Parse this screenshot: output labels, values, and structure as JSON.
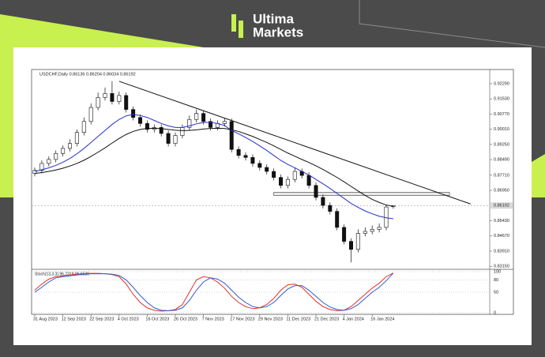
{
  "brand": {
    "line1": "Ultima",
    "line2": "Markets"
  },
  "chart_data": {
    "type": "candlestick",
    "title": "USDCHF,Daily 0.86136 0.86204 0.86034 0.86192",
    "categories": [
      "31 Aug 2023",
      null,
      null,
      null,
      "12 Sep 2023",
      null,
      null,
      null,
      "22 Sep 2023",
      null,
      null,
      null,
      "4 Oct 2023",
      null,
      null,
      null,
      "16 Oct 2023",
      null,
      null,
      null,
      "26 Oct 2023",
      null,
      null,
      null,
      "7 Nov 2023",
      null,
      null,
      null,
      "17 Nov 2023",
      null,
      null,
      null,
      "29 Nov 2023",
      null,
      null,
      null,
      "11 Dec 2023",
      null,
      null,
      null,
      "21 Dec 2023",
      null,
      null,
      null,
      "4 Jan 2024",
      null,
      null,
      null,
      "16 Jan 2024",
      null,
      null,
      null
    ],
    "open": [
      0.878,
      0.8795,
      0.883,
      0.885,
      0.888,
      0.8905,
      0.893,
      0.8985,
      0.904,
      0.911,
      0.916,
      0.918,
      0.914,
      0.917,
      0.91,
      0.906,
      0.903,
      0.9,
      0.901,
      0.898,
      0.893,
      0.897,
      0.901,
      0.905,
      0.908,
      0.904,
      0.901,
      0.903,
      0.904,
      0.89,
      0.887,
      0.886,
      0.883,
      0.881,
      0.879,
      0.876,
      0.872,
      0.875,
      0.879,
      0.877,
      0.872,
      0.866,
      0.862,
      0.859,
      0.851,
      0.844,
      0.84,
      0.848,
      0.849,
      0.85,
      0.851,
      0.86136
    ],
    "high": [
      0.881,
      0.8845,
      0.8865,
      0.8895,
      0.892,
      0.895,
      0.9,
      0.906,
      0.913,
      0.9185,
      0.921,
      0.9241,
      0.919,
      0.9185,
      0.9115,
      0.9075,
      0.9045,
      0.9025,
      0.9025,
      0.8995,
      0.8985,
      0.9025,
      0.907,
      0.91,
      0.9095,
      0.9055,
      0.9045,
      0.9055,
      0.9055,
      0.8915,
      0.8885,
      0.8875,
      0.8845,
      0.8825,
      0.8805,
      0.8775,
      0.8765,
      0.881,
      0.8805,
      0.8785,
      0.8735,
      0.8675,
      0.8635,
      0.8605,
      0.8525,
      0.8455,
      0.85,
      0.851,
      0.852,
      0.853,
      0.862,
      0.86204
    ],
    "low": [
      0.8765,
      0.878,
      0.8815,
      0.8835,
      0.8865,
      0.889,
      0.8915,
      0.897,
      0.9025,
      0.9095,
      0.9145,
      0.9125,
      0.9125,
      0.9085,
      0.9045,
      0.9015,
      0.8985,
      0.8985,
      0.8965,
      0.8915,
      0.8915,
      0.8955,
      0.8995,
      0.9035,
      0.9025,
      0.8995,
      0.8995,
      0.9015,
      0.8885,
      0.8855,
      0.8845,
      0.8815,
      0.8795,
      0.8775,
      0.8745,
      0.8705,
      0.8705,
      0.8735,
      0.8755,
      0.8705,
      0.8645,
      0.8605,
      0.8575,
      0.8495,
      0.8425,
      0.8335,
      0.8385,
      0.8465,
      0.8475,
      0.8485,
      0.8495,
      0.86034
    ],
    "close": [
      0.8795,
      0.883,
      0.885,
      0.888,
      0.8905,
      0.893,
      0.8985,
      0.904,
      0.911,
      0.916,
      0.918,
      0.914,
      0.917,
      0.91,
      0.906,
      0.903,
      0.9,
      0.901,
      0.898,
      0.893,
      0.897,
      0.901,
      0.905,
      0.908,
      0.904,
      0.901,
      0.903,
      0.904,
      0.89,
      0.887,
      0.886,
      0.883,
      0.881,
      0.879,
      0.876,
      0.872,
      0.875,
      0.879,
      0.877,
      0.872,
      0.866,
      0.862,
      0.859,
      0.851,
      0.844,
      0.84,
      0.848,
      0.849,
      0.85,
      0.851,
      0.8612,
      0.86192
    ],
    "up_color": "#ffffff",
    "down_color": "#111111",
    "moving_averages": [
      {
        "color": "#2330c8",
        "values": [
          0.879,
          0.8798,
          0.8808,
          0.882,
          0.8836,
          0.8855,
          0.8878,
          0.8905,
          0.8935,
          0.8965,
          0.8995,
          0.9025,
          0.905,
          0.9068,
          0.9075,
          0.907,
          0.906,
          0.9045,
          0.903,
          0.9018,
          0.901,
          0.901,
          0.9018,
          0.9028,
          0.9035,
          0.9035,
          0.903,
          0.902,
          0.8995,
          0.8978,
          0.896,
          0.894,
          0.8918,
          0.8895,
          0.887,
          0.8845,
          0.8825,
          0.8808,
          0.879,
          0.8772,
          0.875,
          0.8728,
          0.8705,
          0.868,
          0.8655,
          0.863,
          0.861,
          0.8592,
          0.8578,
          0.8566,
          0.8558,
          0.8553
        ]
      },
      {
        "color": "#111111",
        "values": [
          0.878,
          0.8784,
          0.879,
          0.8797,
          0.8806,
          0.8817,
          0.883,
          0.8846,
          0.8865,
          0.8886,
          0.8908,
          0.8932,
          0.8955,
          0.8975,
          0.899,
          0.9,
          0.9005,
          0.9006,
          0.9004,
          0.9,
          0.8996,
          0.8994,
          0.8995,
          0.8998,
          0.9002,
          0.9005,
          0.9006,
          0.9005,
          0.8998,
          0.899,
          0.8978,
          0.8965,
          0.895,
          0.8935,
          0.8918,
          0.89,
          0.8882,
          0.8866,
          0.885,
          0.8835,
          0.8818,
          0.88,
          0.878,
          0.876,
          0.8738,
          0.8715,
          0.8692,
          0.867,
          0.865,
          0.8635,
          0.8622,
          0.8615
        ]
      }
    ],
    "trendline": {
      "x": [
        12,
        62
      ],
      "values": [
        0.9241,
        0.8627
      ],
      "color": "#111111"
    },
    "resistance_zone": {
      "x": [
        34,
        59
      ],
      "values": [
        0.867,
        0.8685
      ]
    },
    "current_price": 0.86192,
    "ylim": [
      0.8304,
      0.93
    ],
    "yticks": [
      {
        "value": 0.8315,
        "label": "0.83150"
      },
      {
        "value": 0.8391,
        "label": "0.83910"
      },
      {
        "value": 0.8467,
        "label": "0.84670"
      },
      {
        "value": 0.8543,
        "label": "0.85430"
      },
      {
        "value": 0.8695,
        "label": "0.86950"
      },
      {
        "value": 0.8771,
        "label": "0.87710"
      },
      {
        "value": 0.8849,
        "label": "0.88490"
      },
      {
        "value": 0.8925,
        "label": "0.89250"
      },
      {
        "value": 0.9001,
        "label": "0.90010"
      },
      {
        "value": 0.9077,
        "label": "0.90770"
      },
      {
        "value": 0.9153,
        "label": "0.91530"
      },
      {
        "value": 0.9229,
        "label": "0.92290"
      }
    ],
    "oscillator": {
      "title": "Stoch(13,3,3) 96.7319 96.5536",
      "ylim": [
        0,
        100
      ],
      "yticks": [
        0,
        50,
        80,
        100
      ],
      "series": [
        {
          "color": "#e0302a",
          "values": [
            55,
            70,
            82,
            88,
            90,
            92,
            94,
            95,
            96,
            96,
            95,
            93,
            88,
            70,
            45,
            25,
            12,
            6,
            4,
            5,
            8,
            20,
            50,
            80,
            88,
            85,
            75,
            60,
            40,
            25,
            15,
            10,
            12,
            20,
            35,
            55,
            68,
            70,
            62,
            45,
            28,
            15,
            8,
            5,
            6,
            15,
            30,
            45,
            60,
            72,
            88,
            96.7319
          ]
        },
        {
          "color": "#2f5bd8",
          "values": [
            50,
            62,
            75,
            85,
            88,
            90,
            92,
            94,
            95,
            95,
            95,
            94,
            91,
            80,
            62,
            42,
            25,
            12,
            6,
            5,
            6,
            12,
            30,
            55,
            75,
            85,
            82,
            72,
            55,
            38,
            25,
            15,
            12,
            15,
            25,
            42,
            58,
            66,
            66,
            55,
            40,
            25,
            14,
            8,
            6,
            10,
            20,
            35,
            50,
            62,
            78,
            96.5536
          ]
        }
      ]
    }
  }
}
